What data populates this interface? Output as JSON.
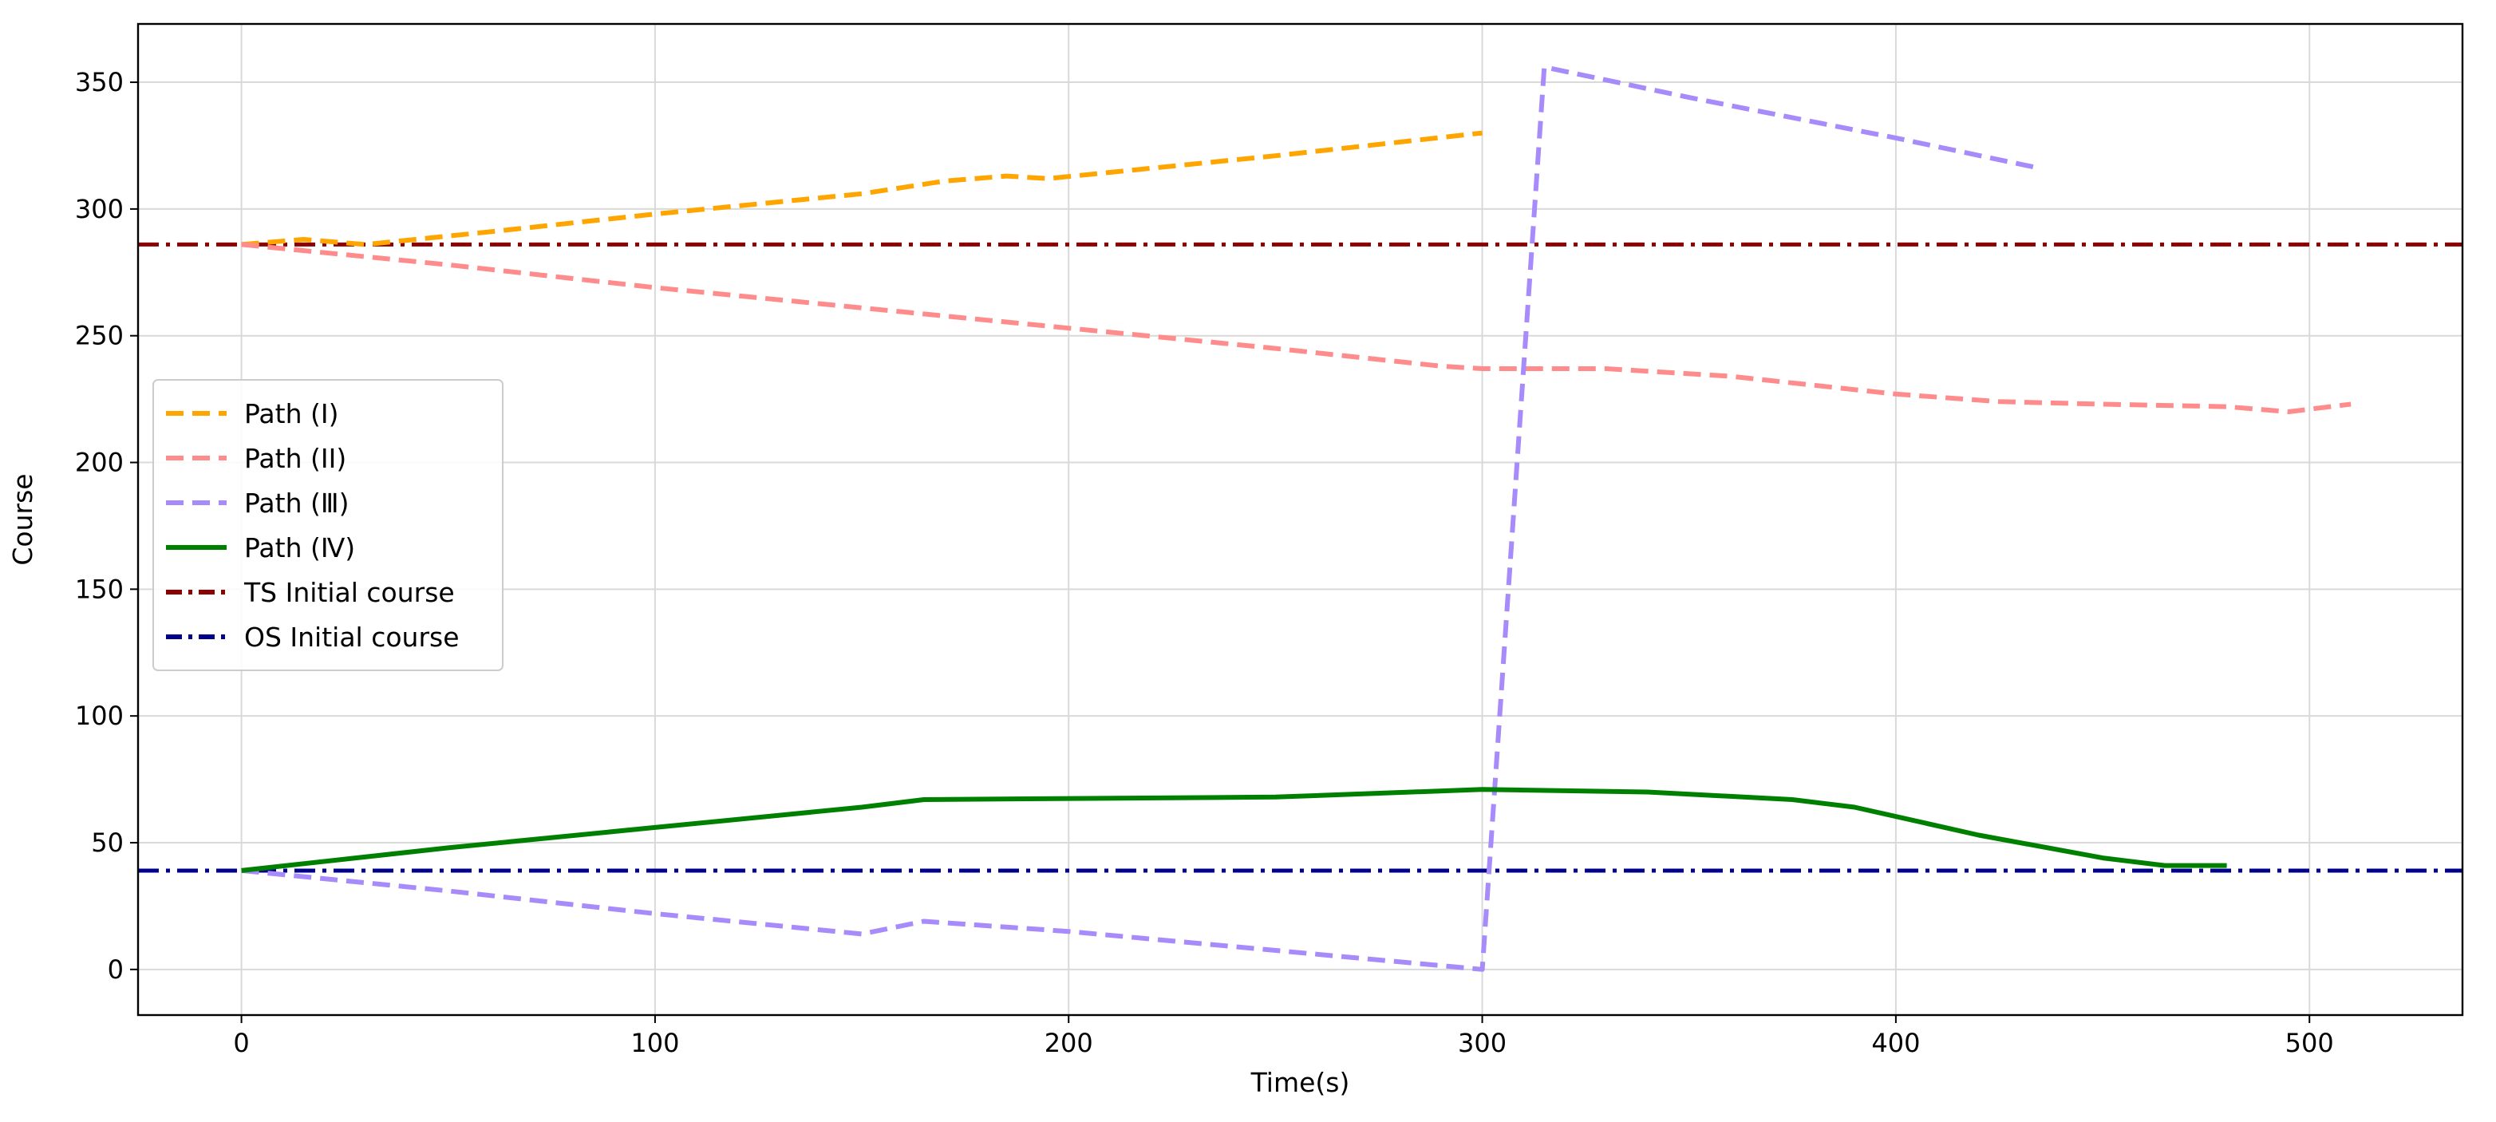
{
  "chart_data": {
    "type": "line",
    "title": "",
    "xlabel": "Time(s)",
    "ylabel": "Course",
    "xlim": [
      -25,
      537
    ],
    "ylim": [
      -18,
      373
    ],
    "xticks": [
      0,
      100,
      200,
      300,
      400,
      500
    ],
    "yticks": [
      0,
      50,
      100,
      150,
      200,
      250,
      300,
      350
    ],
    "grid": true,
    "legend_position": "center-left",
    "series": [
      {
        "name": "Path (I)",
        "color": "#ffa500",
        "style": "dashed",
        "x": [
          0,
          15,
          30,
          60,
          100,
          150,
          170,
          185,
          195,
          250,
          300
        ],
        "y": [
          286,
          288,
          286,
          291,
          298,
          306,
          311,
          313,
          312,
          321,
          330
        ]
      },
      {
        "name": "Path (II)",
        "color": "#ff8c8c",
        "style": "dashed",
        "x": [
          0,
          50,
          100,
          150,
          200,
          250,
          290,
          300,
          330,
          360,
          400,
          425,
          450,
          480,
          495,
          510
        ],
        "y": [
          286,
          278,
          269,
          261,
          253,
          245,
          238,
          237,
          237,
          234,
          227,
          224,
          223,
          222,
          220,
          223
        ]
      },
      {
        "name": "Path (Ⅲ)",
        "color": "#a78bfa",
        "style": "dashed",
        "x": [
          0,
          50,
          100,
          150,
          165,
          200,
          300,
          315,
          350,
          400,
          435
        ],
        "y": [
          39,
          31,
          22,
          14,
          19,
          15,
          0,
          356,
          344,
          328,
          316
        ]
      },
      {
        "name": "Path (Ⅳ)",
        "color": "#008000",
        "style": "solid",
        "x": [
          0,
          50,
          100,
          150,
          165,
          250,
          300,
          340,
          375,
          390,
          420,
          450,
          465,
          480
        ],
        "y": [
          39,
          48,
          56,
          64,
          67,
          68,
          71,
          70,
          67,
          64,
          53,
          44,
          41,
          41
        ]
      },
      {
        "name": "TS Initial course",
        "color": "#8b0000",
        "style": "dashdot",
        "hline": 286
      },
      {
        "name": "OS Initial course",
        "color": "#00008b",
        "style": "dashdot",
        "hline": 39
      }
    ]
  }
}
